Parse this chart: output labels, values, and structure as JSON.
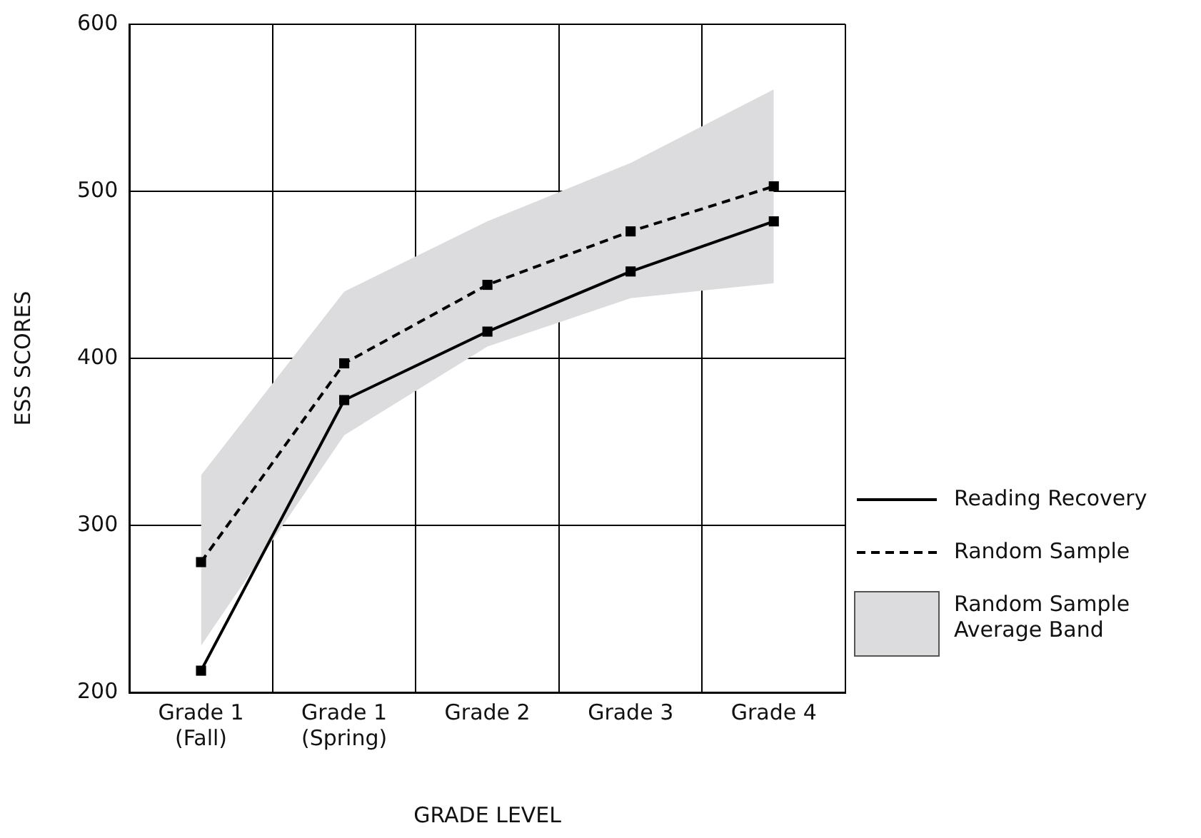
{
  "chart_data": {
    "type": "line",
    "xlabel": "GRADE LEVEL",
    "ylabel": "ESS SCORES",
    "categories": [
      "Grade 1\n(Fall)",
      "Grade 1\n(Spring)",
      "Grade 2",
      "Grade 3",
      "Grade 4"
    ],
    "series": [
      {
        "name": "Reading Recovery",
        "color": "#000000",
        "line_style": "solid",
        "values": [
          213,
          375,
          416,
          452,
          482
        ]
      },
      {
        "name": "Random Sample",
        "color": "#000000",
        "line_style": "dashed",
        "values": [
          278,
          397,
          444,
          476,
          503
        ],
        "lower": [
          228,
          354,
          407,
          436,
          445
        ],
        "upper": [
          330,
          440,
          482,
          517,
          561
        ]
      }
    ],
    "annotations": [
      "Random Sample Average Band"
    ],
    "ylim": [
      200,
      600
    ],
    "yticks": [
      200,
      300,
      400,
      500,
      600
    ],
    "grid": true,
    "legend": "right",
    "marker": "square"
  }
}
